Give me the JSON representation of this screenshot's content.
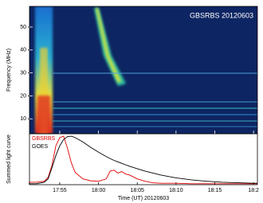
{
  "chart_data": [
    {
      "type": "spectrogram",
      "title": "GBSRBS 20120603",
      "ylabel": "Frequency (MHz)",
      "xlim": [
        51.1,
        80.5
      ],
      "xticks": [
        55,
        60,
        65,
        70,
        75,
        80
      ],
      "ylim": [
        3.5,
        59
      ],
      "yticks": [
        10,
        20,
        30,
        40,
        50
      ]
    },
    {
      "type": "line",
      "ylabel": "Summed light curve",
      "xlabel": "Time (UT) 20120603",
      "xlim": [
        51.1,
        80.5
      ],
      "xticks": [
        {
          "value": 55,
          "label": "17:55"
        },
        {
          "value": 60,
          "label": "18:00"
        },
        {
          "value": 65,
          "label": "18:05"
        },
        {
          "value": 70,
          "label": "18:10"
        },
        {
          "value": 75,
          "label": "18:15"
        },
        {
          "value": 80,
          "label": "18:2"
        }
      ],
      "ylim": [
        0,
        1.05
      ],
      "x": [
        51,
        52,
        53,
        53.5,
        54,
        54.5,
        55,
        55.5,
        56,
        56.5,
        57,
        58,
        59,
        60,
        61,
        61.5,
        62,
        62.5,
        63,
        63.5,
        64,
        65,
        66,
        67,
        68,
        70,
        72,
        74,
        76,
        78,
        80,
        80.5
      ],
      "series": [
        {
          "name": "GBSRBS",
          "color": "#e00000",
          "values": [
            0.05,
            0.05,
            0.07,
            0.15,
            0.4,
            0.8,
            0.97,
            1.0,
            0.75,
            0.45,
            0.25,
            0.12,
            0.08,
            0.07,
            0.12,
            0.28,
            0.3,
            0.24,
            0.27,
            0.22,
            0.2,
            0.12,
            0.07,
            0.04,
            0.03,
            0.03,
            0.02,
            0.02,
            0.02,
            0.02,
            0.02,
            0.02
          ]
        },
        {
          "name": "GOES",
          "color": "#000000",
          "values": [
            0.02,
            0.02,
            0.05,
            0.12,
            0.35,
            0.6,
            0.8,
            0.93,
            0.99,
            1.0,
            0.97,
            0.88,
            0.77,
            0.67,
            0.58,
            0.54,
            0.5,
            0.47,
            0.44,
            0.41,
            0.38,
            0.33,
            0.28,
            0.24,
            0.2,
            0.14,
            0.1,
            0.07,
            0.05,
            0.04,
            0.03,
            0.03
          ]
        }
      ]
    }
  ]
}
